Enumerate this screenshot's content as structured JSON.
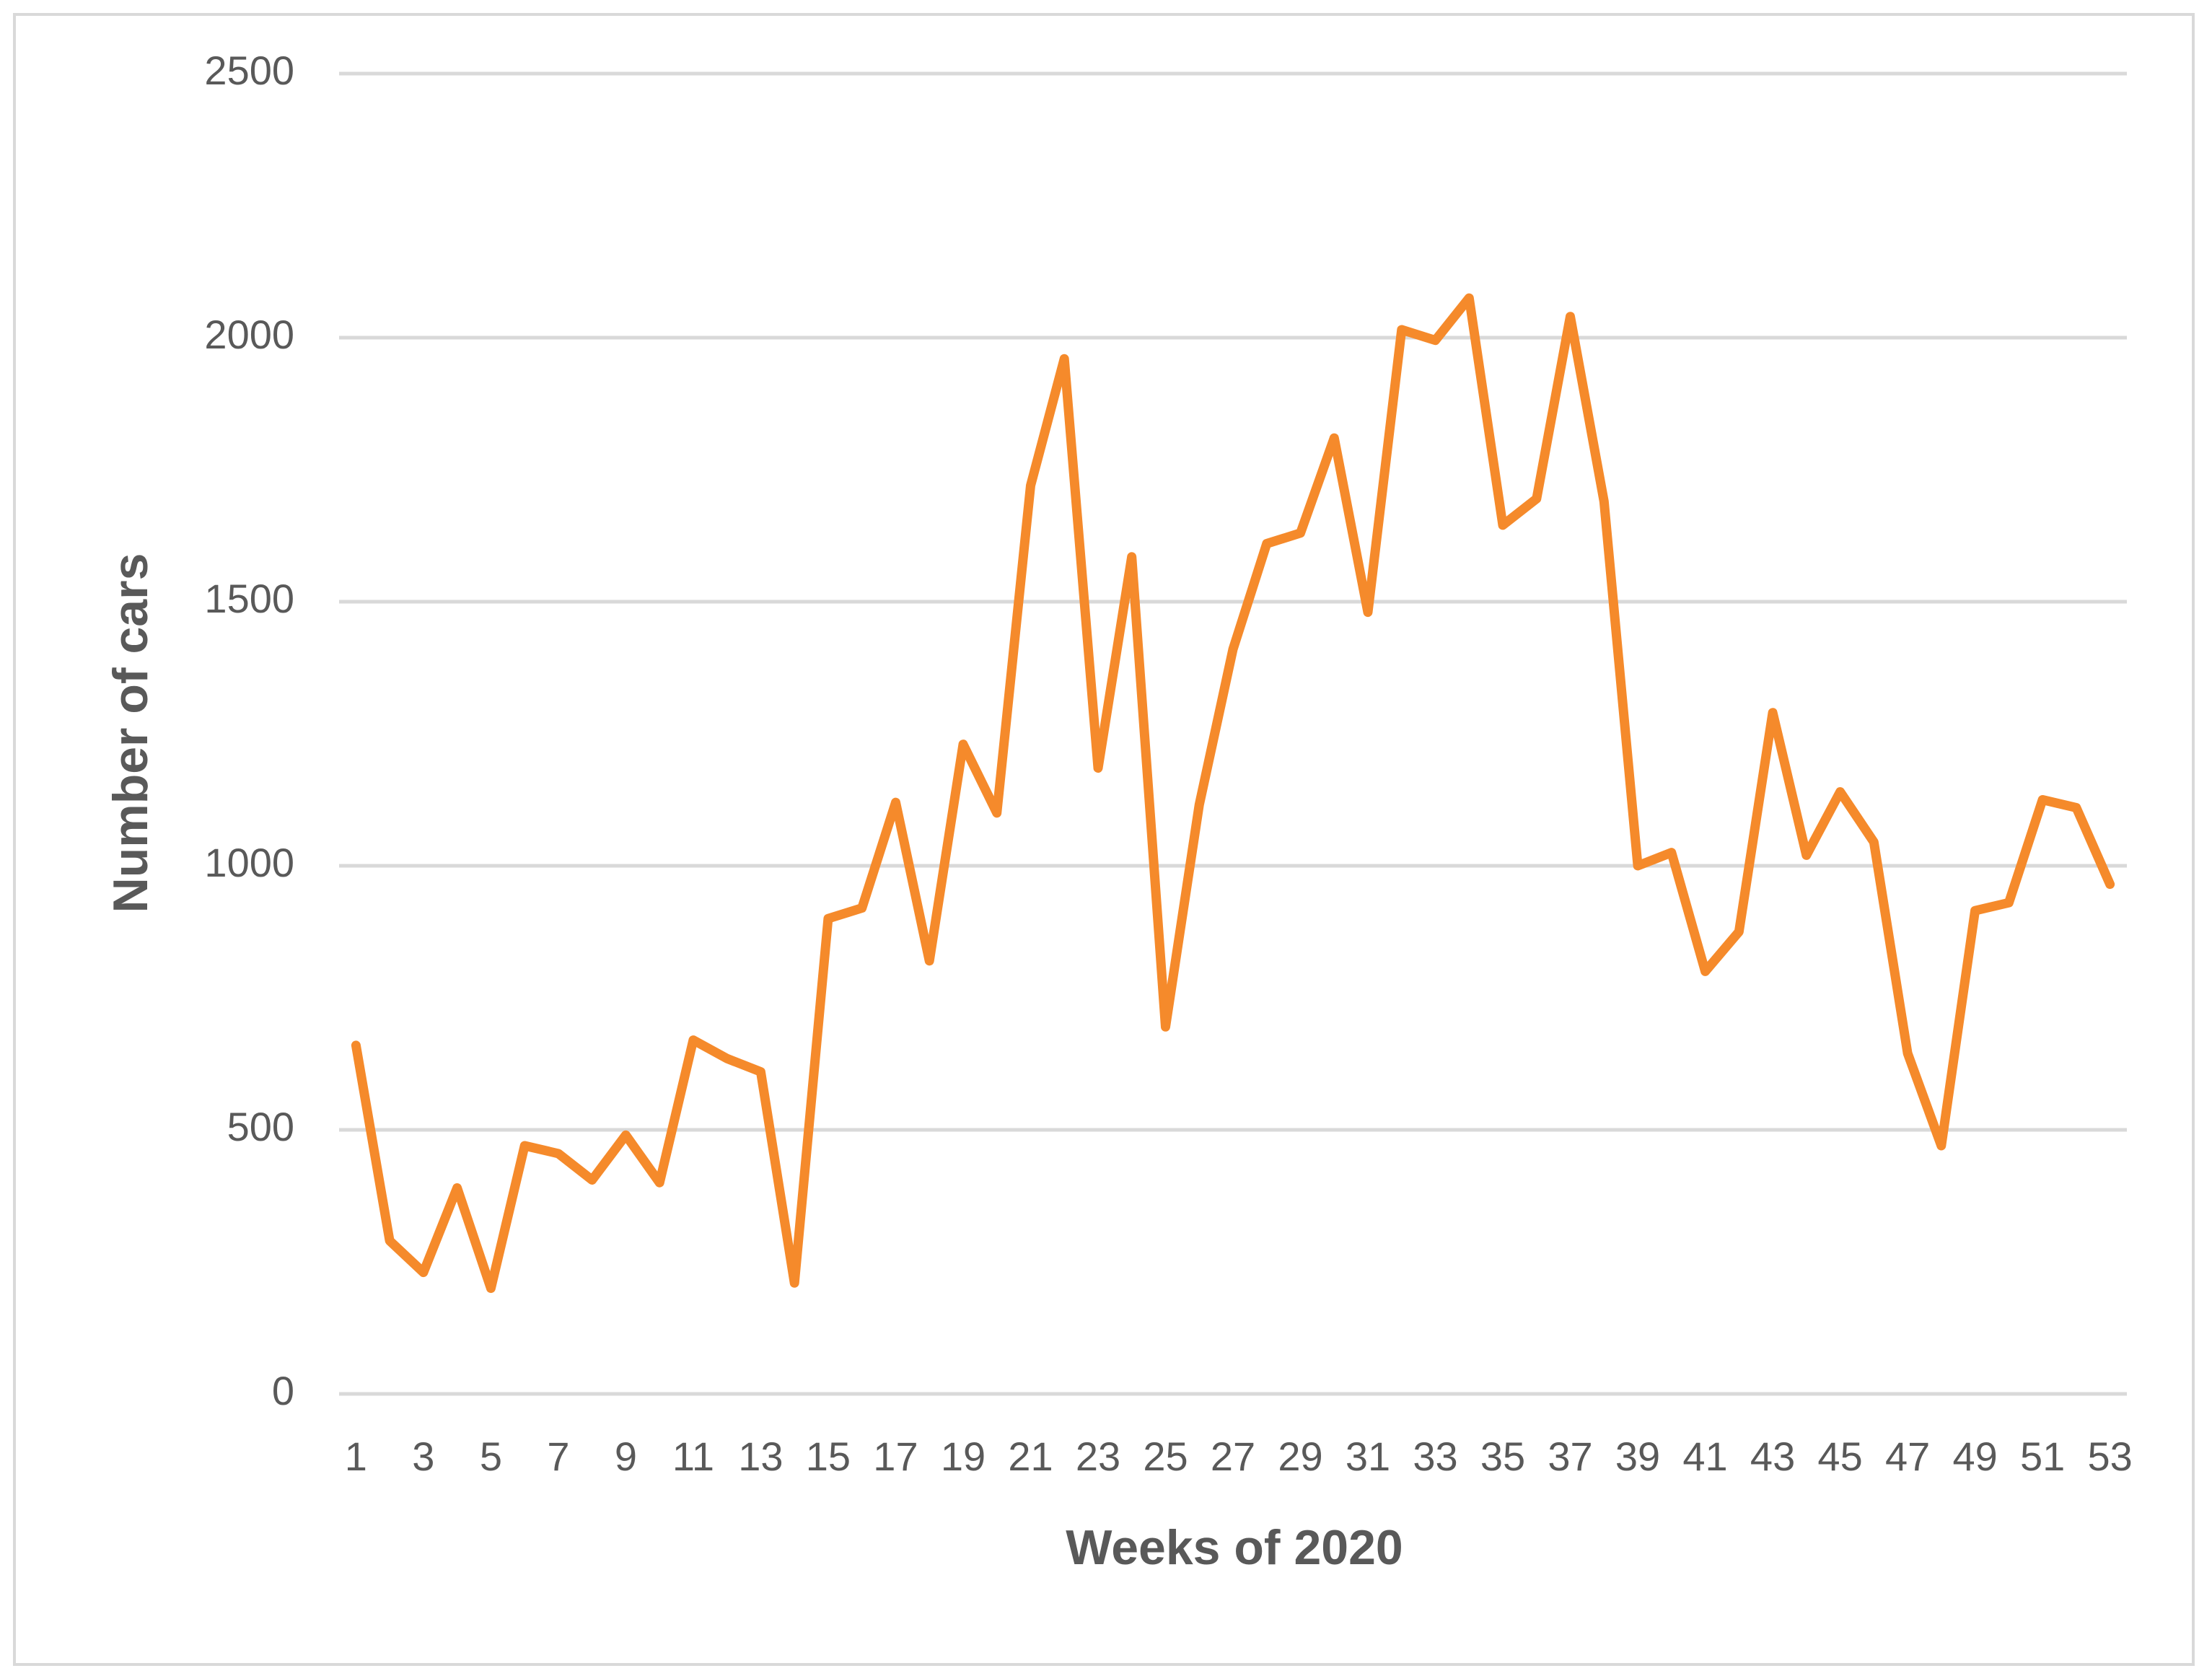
{
  "chart_data": {
    "type": "line",
    "xlabel": "Weeks of 2020",
    "ylabel": "Number of cars",
    "categories": [
      "1",
      null,
      "3",
      null,
      "5",
      null,
      "7",
      null,
      "9",
      null,
      "11",
      null,
      "13",
      null,
      "15",
      null,
      "17",
      null,
      "19",
      null,
      "21",
      null,
      "23",
      null,
      "25",
      null,
      "27",
      null,
      "29",
      null,
      "31",
      null,
      "33",
      null,
      "35",
      null,
      "37",
      null,
      "39",
      null,
      "41",
      null,
      "43",
      null,
      "45",
      null,
      "47",
      null,
      "49",
      null,
      "51",
      null,
      "53"
    ],
    "values": [
      660,
      290,
      230,
      390,
      200,
      470,
      455,
      405,
      490,
      400,
      670,
      635,
      610,
      210,
      900,
      920,
      1120,
      820,
      1230,
      1100,
      1720,
      1960,
      1185,
      1585,
      695,
      1115,
      1410,
      1610,
      1630,
      1810,
      1480,
      2015,
      1995,
      2075,
      1645,
      1695,
      2040,
      1690,
      1000,
      1025,
      800,
      875,
      1290,
      1020,
      1140,
      1045,
      645,
      470,
      915,
      930,
      1125,
      1110,
      965
    ],
    "color": "#f58a2b",
    "ylim": [
      0,
      2500
    ],
    "yticks": [
      0,
      500,
      1000,
      1500,
      2000,
      2500
    ],
    "grid": true
  }
}
